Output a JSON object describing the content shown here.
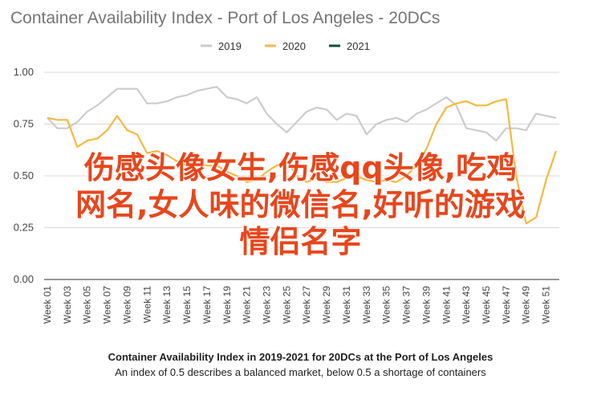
{
  "chart_data": {
    "type": "line",
    "title": "Container Availability Index - Port of Los Angeles - 20DCs",
    "ylim": [
      0,
      1
    ],
    "yticks": [
      "0.00",
      "0.25",
      "0.50",
      "0.75",
      "1.00"
    ],
    "grid": true,
    "legend_position": "top-center",
    "x_tick_labels": [
      "Week 01",
      "Week 03",
      "Week 05",
      "Week 07",
      "Week 09",
      "Week 11",
      "Week 13",
      "Week 15",
      "Week 17",
      "Week 19",
      "Week 21",
      "Week 23",
      "Week 25",
      "Week 27",
      "Week 29",
      "Week 31",
      "Week 33",
      "Week 35",
      "Week 37",
      "Week 39",
      "Week 41",
      "Week 43",
      "Week 45",
      "Week 47",
      "Week 49",
      "Week 51"
    ],
    "weeks": 52,
    "series": [
      {
        "name": "2019",
        "color": "#cccccc",
        "values": [
          0.78,
          0.73,
          0.73,
          0.76,
          0.81,
          0.84,
          0.88,
          0.92,
          0.92,
          0.92,
          0.85,
          0.85,
          0.86,
          0.88,
          0.89,
          0.91,
          0.92,
          0.93,
          0.88,
          0.87,
          0.85,
          0.88,
          0.8,
          0.75,
          0.71,
          0.76,
          0.81,
          0.83,
          0.82,
          0.77,
          0.8,
          0.79,
          0.7,
          0.75,
          0.77,
          0.78,
          0.76,
          0.8,
          0.82,
          0.85,
          0.88,
          0.84,
          0.73,
          0.72,
          0.71,
          0.67,
          0.73,
          0.73,
          0.72,
          0.8,
          0.79,
          0.78
        ]
      },
      {
        "name": "2020",
        "color": "#f5b942",
        "values": [
          0.78,
          0.77,
          0.77,
          0.64,
          0.67,
          0.68,
          0.72,
          0.79,
          0.72,
          0.7,
          0.61,
          0.62,
          0.6,
          0.57,
          0.55,
          0.57,
          0.55,
          0.55,
          0.52,
          0.5,
          0.47,
          0.48,
          0.52,
          0.55,
          0.57,
          0.5,
          0.47,
          0.49,
          0.47,
          0.47,
          0.49,
          0.5,
          0.48,
          0.47,
          0.48,
          0.47,
          0.5,
          0.55,
          0.63,
          0.75,
          0.83,
          0.85,
          0.86,
          0.84,
          0.84,
          0.86,
          0.87,
          0.5,
          0.27,
          0.3,
          0.48,
          0.62
        ]
      },
      {
        "name": "2021",
        "color": "#0f5132",
        "values": []
      }
    ],
    "caption_title": "Container Availability Index in 2019-2021 for 20DCs at the Port of Los Angeles",
    "caption_subtitle": "An index of 0.5 describes a balanced market, below 0.5 a shortage of containers"
  },
  "overlay_text": {
    "line1": "伤感头像女生,伤感qq头像,吃鸡",
    "line2": "网名,女人味的微信名,好听的游戏",
    "line3": "情侣名字"
  }
}
